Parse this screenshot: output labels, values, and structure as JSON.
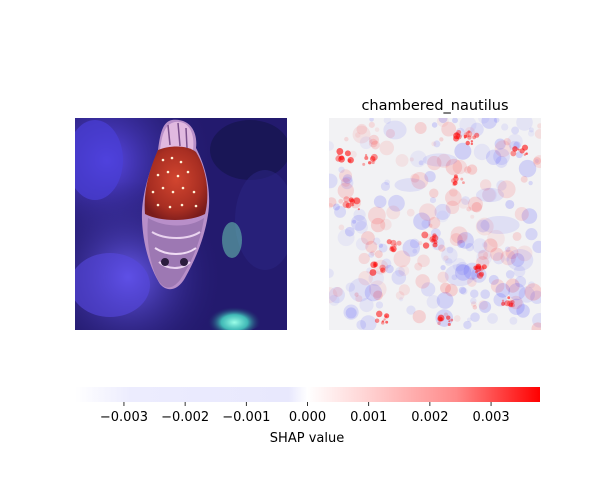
{
  "chart_data": {
    "type": "heatmap",
    "panels": [
      {
        "role": "input-image",
        "title": ""
      },
      {
        "role": "shap-map",
        "title": "chambered_nautilus"
      }
    ],
    "colorbar": {
      "label": "SHAP value",
      "range": [
        -0.0038,
        0.0038
      ],
      "ticks": [
        -0.003,
        -0.002,
        -0.001,
        0.0,
        0.001,
        0.002,
        0.003
      ],
      "tick_labels": [
        "−0.003",
        "−0.002",
        "−0.001",
        "0.000",
        "0.001",
        "0.002",
        "0.003"
      ],
      "negative_color": "#0000ff",
      "positive_color": "#ff0000"
    }
  }
}
